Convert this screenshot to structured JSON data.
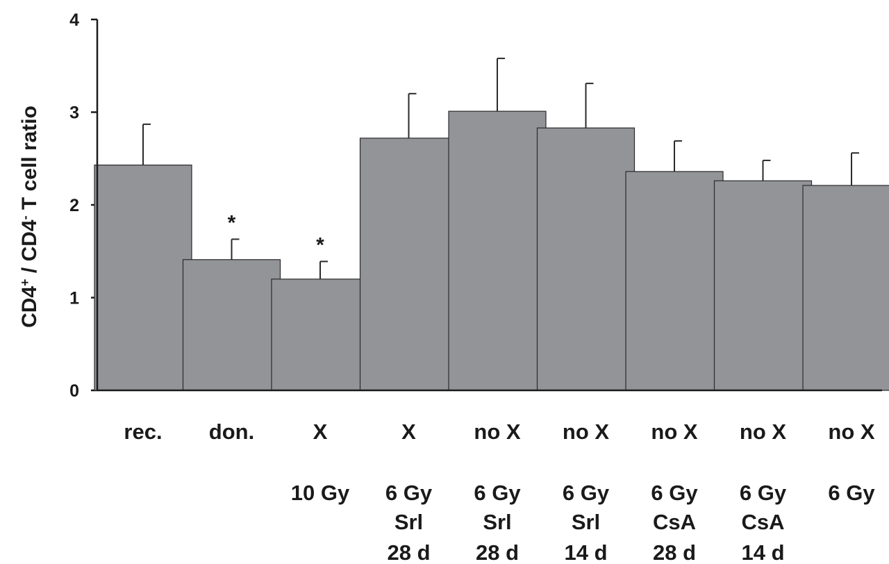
{
  "chart_data": {
    "type": "bar",
    "ylabel": {
      "part1": "CD4",
      "sup1": "+",
      "part2": " / CD4",
      "sup2": "-",
      "part3": " T cell ratio"
    },
    "ylim": [
      0,
      4
    ],
    "yticks": [
      "0",
      "1",
      "2",
      "3",
      "4"
    ],
    "grid": false,
    "bar_color": "#939498",
    "categories": [
      {
        "lines": [
          "rec.",
          "",
          "",
          ""
        ]
      },
      {
        "lines": [
          "don.",
          "",
          "",
          ""
        ]
      },
      {
        "lines": [
          "X",
          "10 Gy",
          "",
          ""
        ]
      },
      {
        "lines": [
          "X",
          "6 Gy",
          "Srl",
          "28 d"
        ]
      },
      {
        "lines": [
          "no X",
          "6 Gy",
          "Srl",
          "28 d"
        ]
      },
      {
        "lines": [
          "no X",
          "6 Gy",
          "Srl",
          "14 d"
        ]
      },
      {
        "lines": [
          "no X",
          "6 Gy",
          "CsA",
          "28 d"
        ]
      },
      {
        "lines": [
          "no X",
          "6 Gy",
          "CsA",
          "14 d"
        ]
      },
      {
        "lines": [
          "no X",
          "6 Gy",
          "",
          ""
        ]
      }
    ],
    "values": [
      2.43,
      1.41,
      1.2,
      2.72,
      3.01,
      2.83,
      2.36,
      2.26,
      2.21
    ],
    "errors": [
      0.44,
      0.22,
      0.19,
      0.48,
      0.57,
      0.48,
      0.33,
      0.22,
      0.35
    ],
    "annotations": [
      "",
      "*",
      "*",
      "",
      "",
      "",
      "",
      "",
      ""
    ]
  }
}
